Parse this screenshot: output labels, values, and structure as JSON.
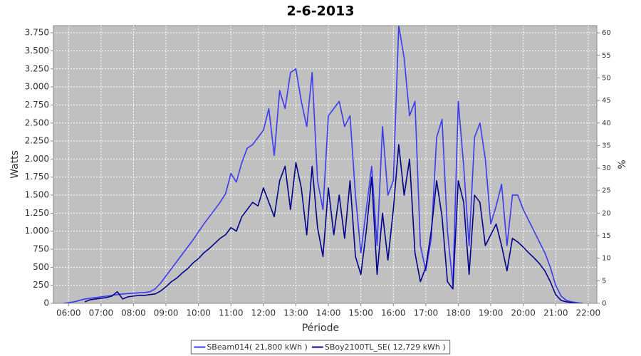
{
  "chart_data": {
    "type": "line",
    "title": "2-6-2013",
    "x_label": "Période",
    "y_label": "Watts",
    "y2_label": "%",
    "xlim": [
      "05:32",
      "22:16"
    ],
    "xticks": [
      "06:00",
      "07:00",
      "08:00",
      "09:00",
      "10:00",
      "11:00",
      "12:00",
      "13:00",
      "14:00",
      "15:00",
      "16:00",
      "17:00",
      "18:00",
      "19:00",
      "20:00",
      "21:00",
      "22:00"
    ],
    "ylim": [
      0,
      3850
    ],
    "yticks": [
      0,
      250,
      500,
      750,
      {
        "value": 1000,
        "label": "1.000"
      },
      {
        "value": 1250,
        "label": "1.250"
      },
      {
        "value": 1500,
        "label": "1.500"
      },
      {
        "value": 1750,
        "label": "1.750"
      },
      {
        "value": 2000,
        "label": "2.000"
      },
      {
        "value": 2250,
        "label": "2.250"
      },
      {
        "value": 2500,
        "label": "2.500"
      },
      {
        "value": 2750,
        "label": "2.750"
      },
      {
        "value": 3000,
        "label": "3.000"
      },
      {
        "value": 3250,
        "label": "3.250"
      },
      {
        "value": 3500,
        "label": "3.500"
      },
      {
        "value": 3750,
        "label": "3.750"
      }
    ],
    "y2lim": [
      0,
      61.6
    ],
    "y2ticks": [
      0,
      5,
      10,
      15,
      20,
      25,
      30,
      35,
      40,
      45,
      50,
      55,
      60
    ],
    "grid": true,
    "legend": "bottom",
    "x": [
      "05:50",
      "06:00",
      "06:10",
      "06:20",
      "06:30",
      "06:40",
      "06:50",
      "07:00",
      "07:10",
      "07:20",
      "07:30",
      "07:40",
      "07:50",
      "08:00",
      "08:10",
      "08:20",
      "08:30",
      "08:40",
      "08:50",
      "09:00",
      "09:10",
      "09:20",
      "09:30",
      "09:40",
      "09:50",
      "10:00",
      "10:10",
      "10:20",
      "10:30",
      "10:40",
      "10:50",
      "11:00",
      "11:10",
      "11:20",
      "11:30",
      "11:40",
      "11:50",
      "12:00",
      "12:10",
      "12:20",
      "12:30",
      "12:40",
      "12:50",
      "13:00",
      "13:10",
      "13:20",
      "13:30",
      "13:40",
      "13:50",
      "14:00",
      "14:10",
      "14:20",
      "14:30",
      "14:40",
      "14:50",
      "15:00",
      "15:10",
      "15:20",
      "15:30",
      "15:40",
      "15:50",
      "16:00",
      "16:10",
      "16:20",
      "16:30",
      "16:40",
      "16:50",
      "17:00",
      "17:10",
      "17:20",
      "17:30",
      "17:40",
      "17:50",
      "18:00",
      "18:10",
      "18:20",
      "18:30",
      "18:40",
      "18:50",
      "19:00",
      "19:10",
      "19:20",
      "19:30",
      "19:40",
      "19:50",
      "20:00",
      "20:10",
      "20:20",
      "20:30",
      "20:40",
      "20:50",
      "21:00",
      "21:10",
      "21:20",
      "21:30",
      "21:40",
      "21:50"
    ],
    "series": [
      {
        "name": "SBeam014( 21,800 kWh )",
        "color": "#3a3af0",
        "values": [
          0,
          10,
          20,
          40,
          60,
          70,
          80,
          90,
          100,
          110,
          120,
          130,
          135,
          140,
          145,
          150,
          160,
          200,
          280,
          380,
          480,
          580,
          680,
          780,
          880,
          990,
          1100,
          1200,
          1300,
          1400,
          1520,
          1800,
          1680,
          1950,
          2150,
          2200,
          2300,
          2400,
          2700,
          2050,
          2950,
          2700,
          3200,
          3250,
          2800,
          2450,
          3200,
          1700,
          1300,
          2600,
          2700,
          2800,
          2450,
          2600,
          1500,
          700,
          1300,
          1900,
          800,
          2450,
          1500,
          1700,
          3850,
          3400,
          2600,
          2800,
          800,
          450,
          900,
          2300,
          2550,
          1000,
          250,
          2800,
          1900,
          800,
          2300,
          2500,
          2000,
          1100,
          1350,
          1650,
          800,
          1500,
          1500,
          1300,
          1150,
          1000,
          850,
          700,
          500,
          250,
          100,
          40,
          20,
          10,
          0
        ]
      },
      {
        "name": "SBoy2100TL_SE( 12,729 kWh )",
        "color": "#00008c",
        "values": [
          null,
          null,
          null,
          null,
          20,
          50,
          60,
          70,
          80,
          100,
          160,
          60,
          90,
          100,
          110,
          110,
          120,
          130,
          170,
          230,
          300,
          350,
          420,
          480,
          560,
          620,
          700,
          760,
          830,
          900,
          950,
          1050,
          1000,
          1200,
          1300,
          1400,
          1350,
          1600,
          1400,
          1200,
          1700,
          1900,
          1300,
          1950,
          1600,
          950,
          1900,
          1050,
          650,
          1600,
          950,
          1500,
          900,
          1700,
          650,
          400,
          1000,
          1750,
          400,
          1250,
          600,
          1300,
          2200,
          1500,
          2000,
          700,
          300,
          500,
          1000,
          1700,
          1200,
          300,
          200,
          1700,
          1400,
          400,
          1500,
          1400,
          800,
          950,
          1100,
          800,
          450,
          900,
          850,
          780,
          700,
          630,
          550,
          450,
          300,
          120,
          40,
          20,
          10,
          0,
          0
        ]
      }
    ]
  }
}
